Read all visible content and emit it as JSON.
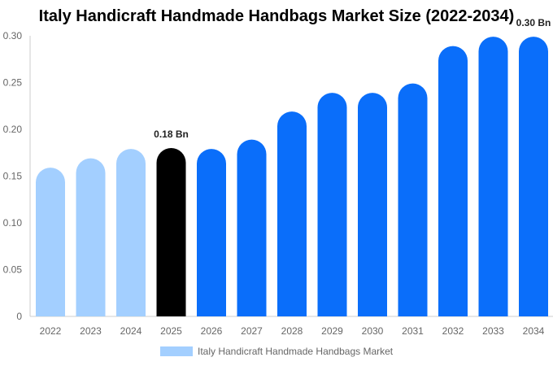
{
  "chart_data": {
    "type": "bar",
    "title": "Italy Handicraft Handmade Handbags Market Size (2022-2034)",
    "categories": [
      "2022",
      "2023",
      "2024",
      "2025",
      "2026",
      "2027",
      "2028",
      "2029",
      "2030",
      "2031",
      "2032",
      "2033",
      "2034"
    ],
    "series": [
      {
        "name": "Italy Handicraft Handmade Handbags Market",
        "values": [
          0.159,
          0.169,
          0.179,
          0.18,
          0.179,
          0.189,
          0.219,
          0.239,
          0.239,
          0.249,
          0.289,
          0.299,
          0.299
        ]
      }
    ],
    "ylim": [
      0,
      0.3
    ],
    "yticks": [
      "0",
      "0.05",
      "0.10",
      "0.15",
      "0.20",
      "0.25",
      "0.30"
    ],
    "data_labels": [
      {
        "category": "2025",
        "text": "0.18 Bn"
      },
      {
        "category": "2034",
        "text": "0.30 Bn"
      }
    ],
    "colors": {
      "historical": "#a3cfff",
      "current": "#000000",
      "forecast": "#0a6efa",
      "axis": "#cccccc"
    },
    "bar_color_groups": [
      "historical",
      "historical",
      "historical",
      "current",
      "forecast",
      "forecast",
      "forecast",
      "forecast",
      "forecast",
      "forecast",
      "forecast",
      "forecast",
      "forecast"
    ],
    "grid": false,
    "legend_position": "bottom"
  }
}
